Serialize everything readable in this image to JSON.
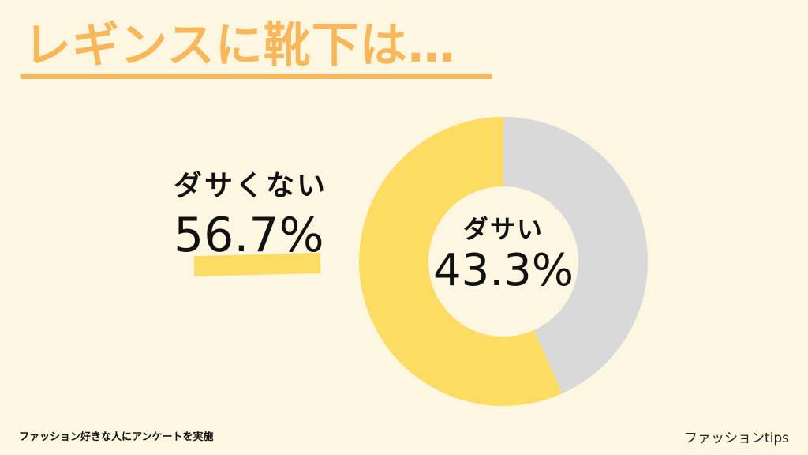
{
  "title": "レギンスに靴下は…",
  "chart_data": {
    "type": "pie",
    "slices": [
      {
        "label": "ダサい",
        "value": 43.3,
        "display": "43.3%",
        "color": "#d9d9d9"
      },
      {
        "label": "ダサくない",
        "value": 56.7,
        "display": "56.7%",
        "color": "#fddc63"
      }
    ]
  },
  "footer": {
    "note": "ファッション好きな人にアンケートを実施",
    "brand": "ファッションtips"
  },
  "colors": {
    "background": "#fdf6e0",
    "title": "#f9b75b",
    "hole": "#fdf6e0"
  }
}
